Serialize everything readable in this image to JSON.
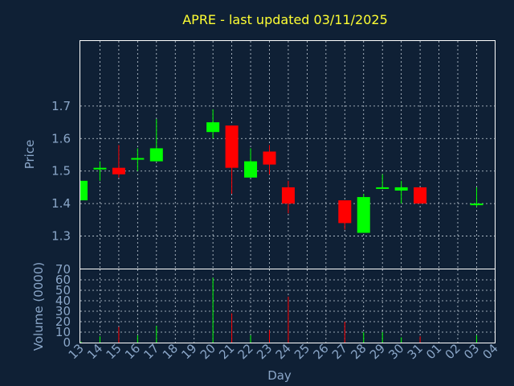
{
  "chart_data": {
    "type": "candlestick",
    "title": "APRE - last updated 03/11/2025",
    "xlabel": "Day",
    "ylabel_price": "Price",
    "ylabel_volume": "Volume (0000)",
    "x_ticks": [
      "13",
      "14",
      "15",
      "16",
      "17",
      "18",
      "19",
      "20",
      "21",
      "22",
      "23",
      "24",
      "25",
      "26",
      "27",
      "28",
      "29",
      "30",
      "31",
      "01",
      "02",
      "03",
      "04"
    ],
    "price_ylim": [
      1.2,
      1.9
    ],
    "price_ticks": [
      1.3,
      1.4,
      1.5,
      1.6,
      1.7
    ],
    "volume_ylim": [
      0,
      70
    ],
    "volume_ticks": [
      0,
      10,
      20,
      30,
      40,
      50,
      60,
      70
    ],
    "grid": true,
    "colors": {
      "up": "#00ff00",
      "down": "#ff0000",
      "title": "#ffff33",
      "axis_text": "#8aa6c8",
      "background": "#0f2035"
    },
    "candles": [
      {
        "day": "13",
        "open": 1.41,
        "high": 1.47,
        "low": 1.41,
        "close": 1.47,
        "volume": 1
      },
      {
        "day": "14",
        "open": 1.51,
        "high": 1.53,
        "low": 1.47,
        "close": 1.51,
        "volume": 6
      },
      {
        "day": "15",
        "open": 1.51,
        "high": 1.58,
        "low": 1.48,
        "close": 1.49,
        "volume": 15
      },
      {
        "day": "16",
        "open": 1.54,
        "high": 1.57,
        "low": 1.5,
        "close": 1.54,
        "volume": 7
      },
      {
        "day": "17",
        "open": 1.53,
        "high": 1.66,
        "low": 1.53,
        "close": 1.57,
        "volume": 16
      },
      {
        "day": "20",
        "open": 1.62,
        "high": 1.69,
        "low": 1.6,
        "close": 1.65,
        "volume": 62
      },
      {
        "day": "21",
        "open": 1.64,
        "high": 1.64,
        "low": 1.43,
        "close": 1.51,
        "volume": 28
      },
      {
        "day": "22",
        "open": 1.48,
        "high": 1.57,
        "low": 1.48,
        "close": 1.53,
        "volume": 7
      },
      {
        "day": "23",
        "open": 1.56,
        "high": 1.58,
        "low": 1.49,
        "close": 1.52,
        "volume": 12
      },
      {
        "day": "24",
        "open": 1.45,
        "high": 1.47,
        "low": 1.37,
        "close": 1.4,
        "volume": 44
      },
      {
        "day": "27",
        "open": 1.41,
        "high": 1.41,
        "low": 1.32,
        "close": 1.34,
        "volume": 20
      },
      {
        "day": "28",
        "open": 1.31,
        "high": 1.43,
        "low": 1.31,
        "close": 1.42,
        "volume": 10
      },
      {
        "day": "29",
        "open": 1.45,
        "high": 1.49,
        "low": 1.45,
        "close": 1.45,
        "volume": 10
      },
      {
        "day": "30",
        "open": 1.44,
        "high": 1.47,
        "low": 1.4,
        "close": 1.45,
        "volume": 5
      },
      {
        "day": "31",
        "open": 1.45,
        "high": 1.45,
        "low": 1.4,
        "close": 1.4,
        "volume": 6
      },
      {
        "day": "03",
        "open": 1.4,
        "high": 1.45,
        "low": 1.39,
        "close": 1.4,
        "volume": 7
      }
    ]
  }
}
